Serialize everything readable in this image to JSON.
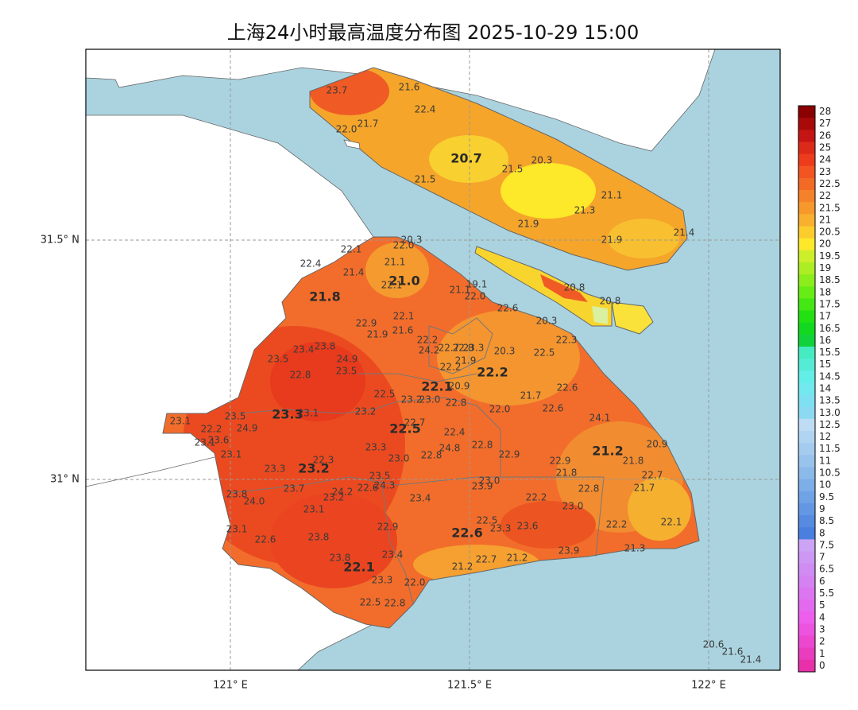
{
  "map": {
    "title": "上海24小时最高温度分布图 2025-10-29 15:00",
    "lon_labels": [
      "121° E",
      "121.5° E",
      "122° E"
    ],
    "lat_labels": [
      "31.5° N",
      "31° N"
    ],
    "colorbar_labels": [
      "28",
      "27",
      "26",
      "25",
      "24",
      "23",
      "22.5",
      "22",
      "21.5",
      "21",
      "20.5",
      "20",
      "19.5",
      "19",
      "18.5",
      "18",
      "17.5",
      "17",
      "16.5",
      "16",
      "15.5",
      "15",
      "14.5",
      "14",
      "13.5",
      "13.0",
      "12.5",
      "12",
      "11.5",
      "11",
      "10.5",
      "10",
      "9.5",
      "9",
      "8.5",
      "8",
      "7.5",
      "7",
      "6.5",
      "6",
      "5.5",
      "5",
      "4",
      "3",
      "2",
      "1",
      "0"
    ],
    "district_values": [
      "20.7",
      "21.0",
      "21.8",
      "22.2",
      "22.1",
      "23.3",
      "22.5",
      "21.2",
      "23.2",
      "22.6",
      "22.1"
    ],
    "station_values": [
      "23.7",
      "21.6",
      "22.4",
      "22.0",
      "21.7",
      "20.3",
      "21.5",
      "21.5",
      "21.1",
      "21.3",
      "21.9",
      "21.9",
      "21.4",
      "20.3",
      "22.0",
      "22.1",
      "21.1",
      "22.4",
      "21.4",
      "22.1",
      "21.1",
      "19.1",
      "22.0",
      "20.8",
      "20.8",
      "22.6",
      "20.3",
      "22.3",
      "22.9",
      "22.1",
      "21.6",
      "21.9",
      "22.2",
      "23.4",
      "23.8",
      "24.2",
      "22.7",
      "22.8",
      "23.3",
      "21.9",
      "20.3",
      "22.5",
      "23.5",
      "24.9",
      "23.5",
      "22.2",
      "22.8",
      "22.5",
      "23.2",
      "23.0",
      "20.9",
      "22.8",
      "21.7",
      "22.6",
      "22.6",
      "22.0",
      "24.1",
      "23.1",
      "23.5",
      "24.9",
      "23.1",
      "23.2",
      "22.7",
      "22.4",
      "22.2",
      "23.1",
      "23.6",
      "23.3",
      "22.8",
      "24.8",
      "22.8",
      "22.9",
      "23.0",
      "20.9",
      "21.8",
      "23.1",
      "22.3",
      "22.9",
      "21.8",
      "22.7",
      "23.3",
      "23.5",
      "24.3",
      "23.0",
      "23.9",
      "23.7",
      "24.2",
      "23.2",
      "22.6",
      "22.8",
      "21.7",
      "23.8",
      "24.0",
      "23.4",
      "22.2",
      "23.0",
      "23.1",
      "22.5",
      "23.3",
      "23.6",
      "22.9",
      "22.2",
      "22.1",
      "23.1",
      "22.6",
      "23.8",
      "23.9",
      "21.3",
      "23.8",
      "23.4",
      "21.2",
      "22.7",
      "21.2",
      "23.3",
      "22.0",
      "22.5",
      "22.8",
      "20.6",
      "21.6",
      "21.4"
    ]
  }
}
